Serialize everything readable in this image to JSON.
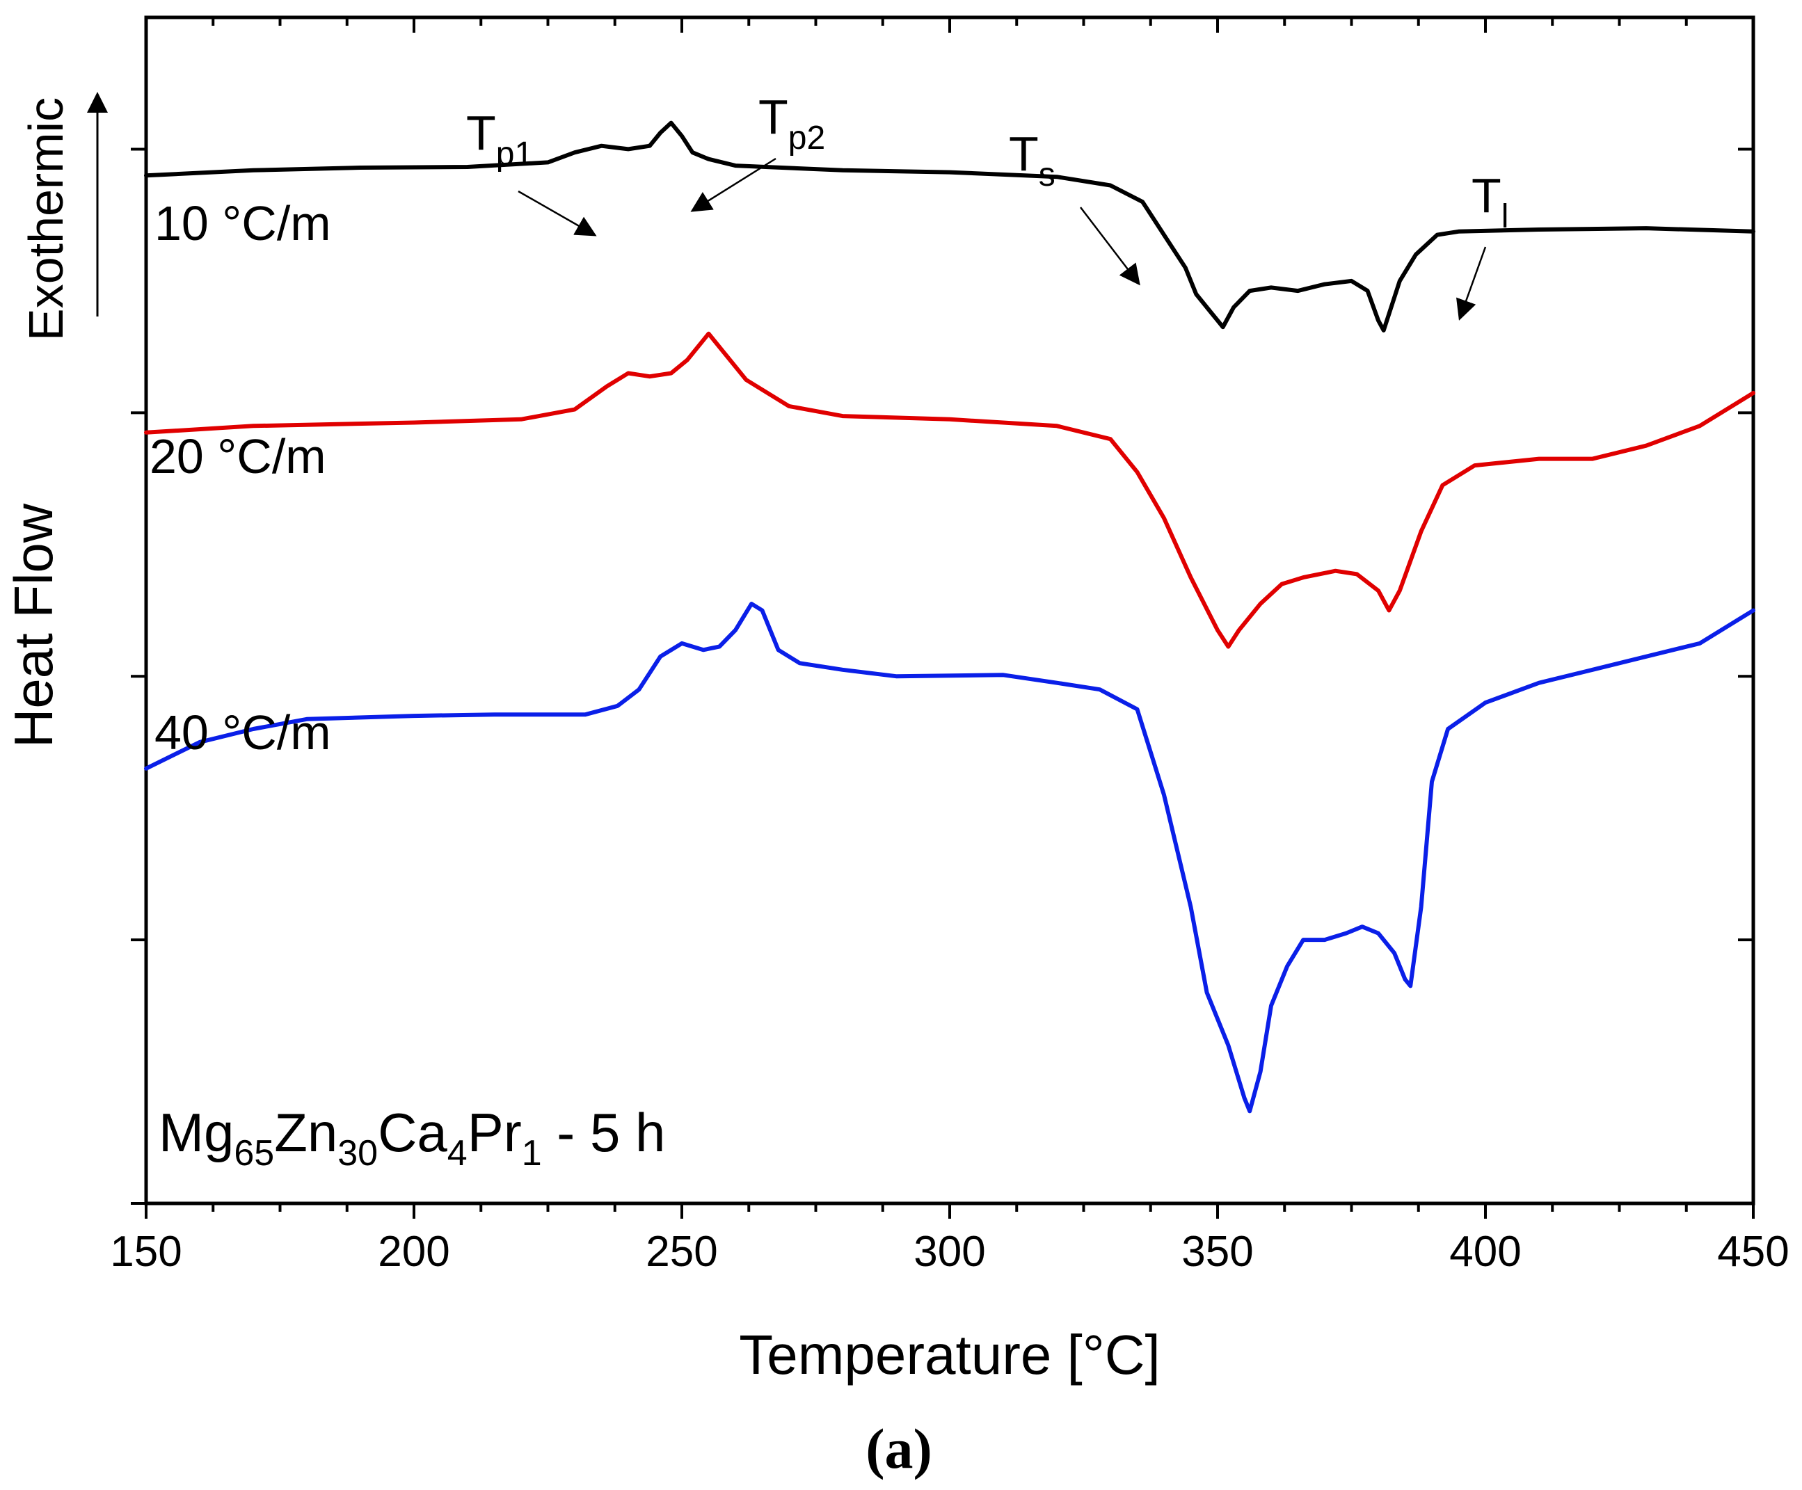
{
  "chart_data": {
    "type": "line",
    "title": "",
    "xlabel": "Temperature [°C]",
    "ylabel": "Heat Flow",
    "y_direction_label": "Exothermic",
    "xlim": [
      150,
      450
    ],
    "ylim": [
      -16,
      2
    ],
    "x_ticks": [
      150,
      200,
      250,
      300,
      350,
      400,
      450
    ],
    "x_tick_labels": [
      "150",
      "200",
      "250",
      "300",
      "350",
      "400",
      "450"
    ],
    "y_ticks": [
      0,
      -4,
      -8,
      -12,
      -16
    ],
    "y_tick_labels_shown": false,
    "alloy_label": {
      "base": "Mg",
      "s1": "65",
      "e2": "Zn",
      "s2": "30",
      "e3": "Ca",
      "s3": "4",
      "e4": "Pr",
      "s4": "1",
      "suffix": " - 5 h"
    },
    "caption": "(a)",
    "series": [
      {
        "name": "10 °C/m",
        "color": "#000000",
        "points": [
          [
            150,
            -0.4
          ],
          [
            170,
            -0.32
          ],
          [
            190,
            -0.28
          ],
          [
            210,
            -0.27
          ],
          [
            225,
            -0.2
          ],
          [
            230,
            -0.05
          ],
          [
            235,
            0.05
          ],
          [
            240,
            0.0
          ],
          [
            244,
            0.05
          ],
          [
            246,
            0.25
          ],
          [
            248,
            0.4
          ],
          [
            250,
            0.2
          ],
          [
            252,
            -0.05
          ],
          [
            255,
            -0.15
          ],
          [
            260,
            -0.25
          ],
          [
            280,
            -0.32
          ],
          [
            300,
            -0.35
          ],
          [
            320,
            -0.42
          ],
          [
            330,
            -0.55
          ],
          [
            336,
            -0.8
          ],
          [
            340,
            -1.3
          ],
          [
            344,
            -1.8
          ],
          [
            346,
            -2.2
          ],
          [
            349,
            -2.5
          ],
          [
            350,
            -2.6
          ],
          [
            351,
            -2.7
          ],
          [
            353,
            -2.4
          ],
          [
            356,
            -2.15
          ],
          [
            360,
            -2.1
          ],
          [
            365,
            -2.15
          ],
          [
            370,
            -2.05
          ],
          [
            375,
            -2.0
          ],
          [
            378,
            -2.15
          ],
          [
            380,
            -2.6
          ],
          [
            381,
            -2.75
          ],
          [
            382,
            -2.5
          ],
          [
            384,
            -2.0
          ],
          [
            387,
            -1.6
          ],
          [
            391,
            -1.3
          ],
          [
            395,
            -1.25
          ],
          [
            410,
            -1.22
          ],
          [
            430,
            -1.2
          ],
          [
            450,
            -1.25
          ]
        ]
      },
      {
        "name": "20 °C/m",
        "color": "#e00000",
        "points": [
          [
            150,
            -4.3
          ],
          [
            170,
            -4.2
          ],
          [
            200,
            -4.15
          ],
          [
            220,
            -4.1
          ],
          [
            230,
            -3.95
          ],
          [
            236,
            -3.6
          ],
          [
            240,
            -3.4
          ],
          [
            244,
            -3.45
          ],
          [
            248,
            -3.4
          ],
          [
            251,
            -3.2
          ],
          [
            255,
            -2.8
          ],
          [
            258,
            -3.1
          ],
          [
            262,
            -3.5
          ],
          [
            270,
            -3.9
          ],
          [
            280,
            -4.05
          ],
          [
            300,
            -4.1
          ],
          [
            320,
            -4.2
          ],
          [
            330,
            -4.4
          ],
          [
            335,
            -4.9
          ],
          [
            340,
            -5.6
          ],
          [
            345,
            -6.5
          ],
          [
            350,
            -7.3
          ],
          [
            352,
            -7.55
          ],
          [
            354,
            -7.3
          ],
          [
            358,
            -6.9
          ],
          [
            362,
            -6.6
          ],
          [
            366,
            -6.5
          ],
          [
            372,
            -6.4
          ],
          [
            376,
            -6.45
          ],
          [
            380,
            -6.7
          ],
          [
            382,
            -7.0
          ],
          [
            384,
            -6.7
          ],
          [
            388,
            -5.8
          ],
          [
            392,
            -5.1
          ],
          [
            398,
            -4.8
          ],
          [
            410,
            -4.7
          ],
          [
            420,
            -4.7
          ],
          [
            430,
            -4.5
          ],
          [
            440,
            -4.2
          ],
          [
            450,
            -3.7
          ]
        ]
      },
      {
        "name": "40 °C/m",
        "color": "#0a1fe8",
        "points": [
          [
            150,
            -9.4
          ],
          [
            160,
            -9.0
          ],
          [
            170,
            -8.8
          ],
          [
            180,
            -8.65
          ],
          [
            200,
            -8.6
          ],
          [
            215,
            -8.58
          ],
          [
            232,
            -8.58
          ],
          [
            238,
            -8.45
          ],
          [
            242,
            -8.2
          ],
          [
            246,
            -7.7
          ],
          [
            250,
            -7.5
          ],
          [
            254,
            -7.6
          ],
          [
            257,
            -7.55
          ],
          [
            260,
            -7.3
          ],
          [
            263,
            -6.9
          ],
          [
            265,
            -7.0
          ],
          [
            268,
            -7.6
          ],
          [
            272,
            -7.8
          ],
          [
            280,
            -7.9
          ],
          [
            290,
            -8.0
          ],
          [
            310,
            -7.98
          ],
          [
            320,
            -8.1
          ],
          [
            328,
            -8.2
          ],
          [
            335,
            -8.5
          ],
          [
            340,
            -9.8
          ],
          [
            345,
            -11.5
          ],
          [
            348,
            -12.8
          ],
          [
            352,
            -13.6
          ],
          [
            355,
            -14.4
          ],
          [
            356,
            -14.6
          ],
          [
            358,
            -14.0
          ],
          [
            360,
            -13.0
          ],
          [
            363,
            -12.4
          ],
          [
            366,
            -12.0
          ],
          [
            370,
            -12.0
          ],
          [
            374,
            -11.9
          ],
          [
            377,
            -11.8
          ],
          [
            380,
            -11.9
          ],
          [
            383,
            -12.2
          ],
          [
            385,
            -12.6
          ],
          [
            386,
            -12.7
          ],
          [
            388,
            -11.5
          ],
          [
            390,
            -9.6
          ],
          [
            393,
            -8.8
          ],
          [
            400,
            -8.4
          ],
          [
            410,
            -8.1
          ],
          [
            420,
            -7.9
          ],
          [
            430,
            -7.7
          ],
          [
            440,
            -7.5
          ],
          [
            450,
            -7.0
          ]
        ]
      }
    ],
    "annotations": [
      {
        "base": "T",
        "sub": "p1"
      },
      {
        "base": "T",
        "sub": "p2"
      },
      {
        "base": "T",
        "sub": "s"
      },
      {
        "base": "T",
        "sub": "l"
      }
    ]
  }
}
